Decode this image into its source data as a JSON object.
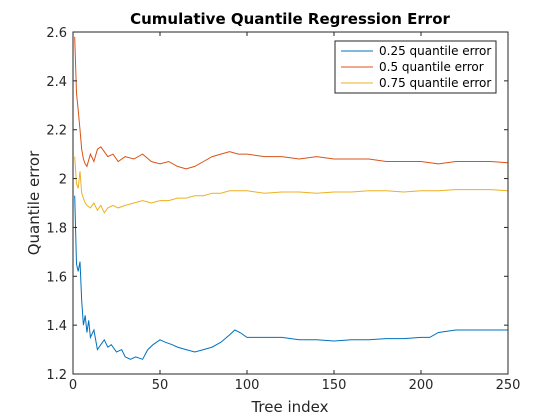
{
  "chart_data": {
    "type": "line",
    "title": "Cumulative Quantile Regression Error",
    "xlabel": "Tree index",
    "ylabel": "Quantile error",
    "xlim": [
      0,
      250
    ],
    "ylim": [
      1.2,
      2.6
    ],
    "x_ticks": [
      0,
      50,
      100,
      150,
      200,
      250
    ],
    "y_ticks": [
      1.2,
      1.4,
      1.6,
      1.8,
      2,
      2.2,
      2.4,
      2.6
    ],
    "x_tick_labels": [
      "0",
      "50",
      "100",
      "150",
      "200",
      "250"
    ],
    "y_tick_labels": [
      "1.2",
      "1.4",
      "1.6",
      "1.8",
      "2",
      "2.2",
      "2.4",
      "2.6"
    ],
    "grid": false,
    "legend_position": "top-right",
    "series": [
      {
        "name": "0.25 quantile error",
        "color": "#0072BD",
        "x": [
          1,
          2,
          3,
          4,
          5,
          6,
          7,
          8,
          9,
          10,
          12,
          14,
          16,
          18,
          20,
          22,
          25,
          28,
          30,
          33,
          36,
          40,
          43,
          46,
          50,
          53,
          57,
          60,
          65,
          70,
          75,
          80,
          85,
          90,
          93,
          96,
          100,
          110,
          120,
          130,
          140,
          150,
          160,
          170,
          180,
          190,
          200,
          205,
          210,
          215,
          220,
          230,
          240,
          250
        ],
        "y": [
          1.93,
          1.65,
          1.62,
          1.66,
          1.5,
          1.4,
          1.44,
          1.37,
          1.42,
          1.35,
          1.38,
          1.3,
          1.32,
          1.34,
          1.31,
          1.32,
          1.29,
          1.3,
          1.27,
          1.26,
          1.27,
          1.26,
          1.3,
          1.32,
          1.34,
          1.33,
          1.32,
          1.31,
          1.3,
          1.29,
          1.3,
          1.31,
          1.33,
          1.36,
          1.38,
          1.37,
          1.35,
          1.35,
          1.35,
          1.34,
          1.34,
          1.335,
          1.34,
          1.34,
          1.345,
          1.345,
          1.35,
          1.35,
          1.37,
          1.375,
          1.38,
          1.38,
          1.38,
          1.38
        ]
      },
      {
        "name": "0.5 quantile error",
        "color": "#D95319",
        "x": [
          1,
          2,
          3,
          4,
          5,
          6,
          7,
          8,
          10,
          12,
          14,
          16,
          18,
          20,
          23,
          26,
          30,
          35,
          40,
          45,
          50,
          55,
          60,
          65,
          70,
          75,
          80,
          85,
          90,
          95,
          100,
          110,
          120,
          130,
          140,
          150,
          160,
          170,
          180,
          190,
          200,
          210,
          220,
          230,
          240,
          250
        ],
        "y": [
          2.58,
          2.35,
          2.28,
          2.2,
          2.12,
          2.08,
          2.06,
          2.05,
          2.1,
          2.07,
          2.12,
          2.13,
          2.11,
          2.09,
          2.1,
          2.07,
          2.09,
          2.08,
          2.1,
          2.07,
          2.06,
          2.07,
          2.05,
          2.04,
          2.05,
          2.07,
          2.09,
          2.1,
          2.11,
          2.1,
          2.1,
          2.09,
          2.09,
          2.08,
          2.09,
          2.08,
          2.08,
          2.08,
          2.07,
          2.07,
          2.07,
          2.06,
          2.07,
          2.07,
          2.07,
          2.065
        ]
      },
      {
        "name": "0.75 quantile error",
        "color": "#EDB120",
        "x": [
          1,
          2,
          3,
          4,
          5,
          6,
          7,
          8,
          10,
          12,
          14,
          16,
          18,
          20,
          23,
          26,
          30,
          35,
          40,
          45,
          50,
          55,
          60,
          65,
          70,
          75,
          80,
          85,
          90,
          95,
          100,
          110,
          120,
          130,
          140,
          150,
          160,
          170,
          180,
          190,
          200,
          210,
          220,
          230,
          240,
          250
        ],
        "y": [
          2.09,
          1.98,
          1.96,
          2.03,
          1.94,
          1.92,
          1.9,
          1.89,
          1.88,
          1.9,
          1.87,
          1.89,
          1.86,
          1.88,
          1.89,
          1.88,
          1.89,
          1.9,
          1.91,
          1.9,
          1.91,
          1.91,
          1.92,
          1.92,
          1.93,
          1.93,
          1.94,
          1.94,
          1.95,
          1.95,
          1.95,
          1.94,
          1.945,
          1.945,
          1.94,
          1.945,
          1.945,
          1.95,
          1.95,
          1.945,
          1.95,
          1.95,
          1.955,
          1.955,
          1.955,
          1.95
        ]
      }
    ]
  }
}
